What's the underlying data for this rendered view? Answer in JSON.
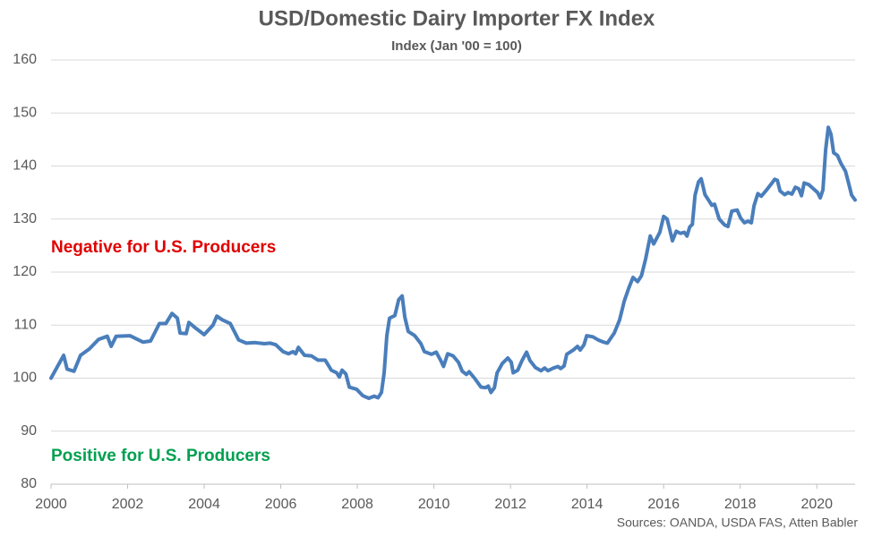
{
  "chart_data": {
    "type": "line",
    "title": "USD/Domestic Dairy Importer FX Index",
    "subtitle": "Index (Jan '00 = 100)",
    "source": "Sources: OANDA, USDA FAS, Atten Babler",
    "annotations": [
      {
        "text": "Negative for U.S. Producers",
        "color": "#e00000"
      },
      {
        "text": "Positive for U.S. Producers",
        "color": "#00a050"
      }
    ],
    "xlim": [
      2000,
      2021
    ],
    "xticks": [
      2000,
      2002,
      2004,
      2006,
      2008,
      2010,
      2012,
      2014,
      2016,
      2018,
      2020
    ],
    "ylim": [
      80,
      160
    ],
    "yticks": [
      80,
      90,
      100,
      110,
      120,
      130,
      140,
      150,
      160
    ],
    "grid": true,
    "series": [
      {
        "name": "USD/Domestic Dairy Importer FX Index",
        "color": "#4a7ebb",
        "x": [
          2000.0,
          2000.33,
          2000.42,
          2000.6,
          2000.77,
          2001.0,
          2001.24,
          2001.47,
          2001.57,
          2001.7,
          2002.06,
          2002.4,
          2002.6,
          2002.83,
          2003.0,
          2003.16,
          2003.3,
          2003.37,
          2003.53,
          2003.6,
          2003.8,
          2004.0,
          2004.23,
          2004.33,
          2004.47,
          2004.68,
          2004.9,
          2005.1,
          2005.33,
          2005.57,
          2005.73,
          2005.87,
          2006.06,
          2006.2,
          2006.32,
          2006.39,
          2006.46,
          2006.62,
          2006.8,
          2006.97,
          2007.16,
          2007.32,
          2007.46,
          2007.53,
          2007.6,
          2007.7,
          2007.79,
          2007.98,
          2008.14,
          2008.3,
          2008.44,
          2008.54,
          2008.63,
          2008.7,
          2008.77,
          2008.84,
          2008.98,
          2009.08,
          2009.17,
          2009.24,
          2009.33,
          2009.5,
          2009.66,
          2009.75,
          2009.94,
          2010.06,
          2010.18,
          2010.25,
          2010.36,
          2010.5,
          2010.64,
          2010.74,
          2010.85,
          2010.92,
          2011.06,
          2011.23,
          2011.35,
          2011.42,
          2011.49,
          2011.58,
          2011.65,
          2011.79,
          2011.93,
          2012.02,
          2012.07,
          2012.19,
          2012.3,
          2012.42,
          2012.51,
          2012.65,
          2012.8,
          2012.89,
          2012.98,
          2013.12,
          2013.24,
          2013.31,
          2013.4,
          2013.47,
          2013.64,
          2013.75,
          2013.82,
          2013.92,
          2013.99,
          2014.15,
          2014.29,
          2014.43,
          2014.53,
          2014.71,
          2014.85,
          2014.97,
          2015.09,
          2015.2,
          2015.32,
          2015.42,
          2015.53,
          2015.65,
          2015.74,
          2015.9,
          2016.0,
          2016.09,
          2016.16,
          2016.23,
          2016.33,
          2016.44,
          2016.54,
          2016.61,
          2016.68,
          2016.75,
          2016.82,
          2016.91,
          2016.98,
          2017.08,
          2017.17,
          2017.26,
          2017.33,
          2017.45,
          2017.59,
          2017.68,
          2017.78,
          2017.92,
          2018.01,
          2018.11,
          2018.2,
          2018.29,
          2018.36,
          2018.46,
          2018.55,
          2018.69,
          2018.83,
          2018.9,
          2018.97,
          2019.04,
          2019.16,
          2019.25,
          2019.35,
          2019.44,
          2019.53,
          2019.6,
          2019.67,
          2019.79,
          2019.93,
          2020.02,
          2020.09,
          2020.16,
          2020.23,
          2020.3,
          2020.37,
          2020.44,
          2020.54,
          2020.63,
          2020.75,
          2020.84,
          2020.91,
          2021.0
        ],
        "values": [
          100.0,
          104.3,
          101.7,
          101.3,
          104.3,
          105.5,
          107.3,
          107.9,
          106.0,
          107.9,
          108.0,
          106.8,
          107.0,
          110.3,
          110.3,
          112.2,
          111.3,
          108.5,
          108.4,
          110.5,
          109.3,
          108.2,
          110.0,
          111.7,
          111.0,
          110.3,
          107.2,
          106.6,
          106.7,
          106.5,
          106.6,
          106.3,
          105.0,
          104.6,
          105.0,
          104.6,
          105.8,
          104.3,
          104.2,
          103.4,
          103.4,
          101.5,
          101.0,
          100.2,
          101.5,
          100.8,
          98.3,
          97.9,
          96.7,
          96.2,
          96.6,
          96.3,
          97.3,
          101.0,
          108.0,
          111.3,
          111.8,
          114.8,
          115.5,
          111.5,
          108.8,
          108.0,
          106.5,
          105.0,
          104.5,
          104.9,
          103.3,
          102.2,
          104.6,
          104.2,
          103.0,
          101.3,
          100.7,
          101.2,
          100.0,
          98.3,
          98.2,
          98.5,
          97.3,
          98.2,
          101.0,
          102.8,
          103.8,
          103.0,
          101.0,
          101.5,
          103.3,
          104.9,
          103.3,
          102.0,
          101.4,
          101.9,
          101.4,
          101.9,
          102.2,
          101.8,
          102.3,
          104.5,
          105.3,
          106.0,
          105.3,
          106.3,
          108.0,
          107.8,
          107.2,
          106.8,
          106.6,
          108.5,
          111.0,
          114.5,
          117.0,
          119.0,
          118.2,
          119.3,
          122.5,
          126.8,
          125.3,
          127.5,
          130.5,
          130.0,
          128.0,
          125.9,
          127.7,
          127.3,
          127.5,
          126.8,
          128.5,
          129.0,
          134.5,
          137.0,
          137.6,
          134.6,
          133.6,
          132.6,
          132.8,
          130.0,
          128.9,
          128.6,
          131.5,
          131.7,
          130.2,
          129.3,
          129.6,
          129.3,
          132.5,
          134.8,
          134.3,
          135.5,
          136.8,
          137.5,
          137.3,
          135.3,
          134.6,
          135.0,
          134.7,
          136.0,
          135.7,
          134.4,
          136.8,
          136.5,
          135.6,
          135.0,
          134.0,
          135.5,
          143.0,
          147.3,
          146.0,
          142.5,
          142.0,
          140.5,
          139.0,
          136.5,
          134.5,
          133.6
        ]
      }
    ]
  }
}
